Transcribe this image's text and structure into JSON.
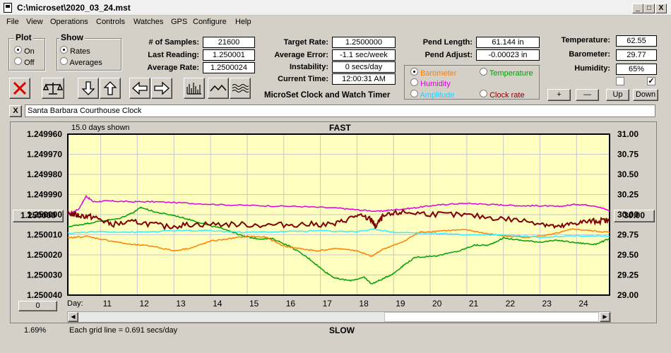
{
  "window": {
    "title": "C:\\microset\\2020_03_24.mst",
    "min": "_",
    "max": "□",
    "close": "X"
  },
  "menu": [
    "File",
    "View",
    "Operations",
    "Controls",
    "Watches",
    "GPS",
    "Configure",
    "Help"
  ],
  "plot_group": {
    "title": "Plot",
    "on": "On",
    "off": "Off",
    "selected": "On"
  },
  "show_group": {
    "title": "Show",
    "rates": "Rates",
    "averages": "Averages",
    "selected": "Rates"
  },
  "stats": {
    "samples_label": "# of Samples:",
    "samples": "21600",
    "last_label": "Last Reading:",
    "last": "1.250001",
    "avg_label": "Average Rate:",
    "avg": "1.2500024"
  },
  "target": {
    "rate_label": "Target Rate:",
    "rate": "1.2500000",
    "error_label": "Average Error:",
    "error": "-1.1 sec/week",
    "instab_label": "Instability:",
    "instab": "0 secs/day",
    "time_label": "Current Time:",
    "time": "12:00:31 AM"
  },
  "pend": {
    "length_label": "Pend Length:",
    "length": "61.144 in",
    "adjust_label": "Pend Adjust:",
    "adjust": "-0.00023 in"
  },
  "env": {
    "temp_label": "Temperature:",
    "temp": "62.55",
    "baro_label": "Barometer:",
    "baro": "29.77",
    "hum_label": "Humidity:",
    "hum": "65%"
  },
  "env_buttons": {
    "plus": "+",
    "minus": "—",
    "up": "Up",
    "down": "Down"
  },
  "sensor_options": [
    {
      "label": "Barometer",
      "color": "#ff8000",
      "selected": true
    },
    {
      "label": "Temperature",
      "color": "#00a000",
      "selected": false
    },
    {
      "label": "Humidity",
      "color": "#e000e0",
      "selected": false
    },
    {
      "label": "Amplitude",
      "color": "#00c0ff",
      "selected": false
    },
    {
      "label": "Clock rate",
      "color": "#800000",
      "selected": false
    }
  ],
  "app_caption": "MicroSet Clock and Watch Timer",
  "clock_name": "Santa Barbara Courthouse Clock",
  "close_x": "X",
  "toolbar_icons": [
    "stop-icon",
    "balance-icon",
    "arrow-down-icon",
    "arrow-up-icon",
    "arrow-left-icon",
    "arrow-right-icon",
    "histogram-icon",
    "wave-icon",
    "ripple-icon"
  ],
  "graph": {
    "days_shown": "15.0 days shown",
    "fast": "FAST",
    "slow": "SLOW",
    "grid_note": "Each grid line = 0.691 secs/day",
    "day_label": "Day:",
    "percent": "1.69%",
    "left_button": "1.250000",
    "right_button": "30.00",
    "bottom_button": "0"
  },
  "chart_data": {
    "type": "line",
    "left_axis": {
      "ticks": [
        "1.249960",
        "1.249970",
        "1.249980",
        "1.249990",
        "1.250000",
        "1.250010",
        "1.250020",
        "1.250030",
        "1.250040"
      ],
      "ylim": [
        1.24996,
        1.25004
      ],
      "inverted": true
    },
    "right_axis": {
      "ticks": [
        "31.00",
        "30.75",
        "30.50",
        "30.25",
        "30.00",
        "29.75",
        "29.50",
        "29.25",
        "29.00"
      ],
      "ylim": [
        29.0,
        31.0
      ]
    },
    "x": {
      "label": "Day",
      "ticks": [
        "11",
        "12",
        "13",
        "14",
        "15",
        "16",
        "17",
        "18",
        "19",
        "20",
        "21",
        "22",
        "23",
        "24"
      ],
      "xlim": [
        10.1,
        24.9
      ]
    },
    "series": [
      {
        "name": "Humidity",
        "color": "#e000e0",
        "x": [
          10.1,
          10.4,
          10.6,
          10.8,
          11.2,
          11.8,
          12.5,
          13.5,
          14.5,
          15.5,
          16.5,
          17.5,
          18,
          18.6,
          19,
          19.5,
          20,
          20.5,
          21,
          21.5,
          22,
          22.5,
          23,
          23.5,
          24,
          24.5,
          24.9
        ],
        "y": [
          30.0,
          30.07,
          30.23,
          30.16,
          30.17,
          30.16,
          30.16,
          30.14,
          30.12,
          30.11,
          30.1,
          30.08,
          30.06,
          30.04,
          30.06,
          30.08,
          30.11,
          30.13,
          30.14,
          30.13,
          30.12,
          30.11,
          30.11,
          30.1,
          30.13,
          30.11,
          30.05
        ]
      },
      {
        "name": "Temperature",
        "color": "#00a000",
        "x": [
          10.1,
          10.5,
          11,
          11.5,
          11.9,
          12.1,
          12.5,
          13,
          13.5,
          14,
          14.4,
          14.9,
          15.3,
          15.7,
          16.2,
          16.7,
          17.1,
          17.4,
          17.8,
          18.2,
          18.4,
          18.7,
          19,
          19.3,
          19.6,
          20.2,
          20.8,
          21.2,
          21.6,
          22,
          22.5,
          23,
          23.5,
          24,
          24.5,
          24.9
        ],
        "y": [
          29.85,
          29.88,
          29.92,
          29.95,
          30.03,
          30.09,
          30.03,
          29.99,
          29.93,
          29.86,
          29.82,
          29.73,
          29.7,
          29.7,
          29.6,
          29.45,
          29.3,
          29.21,
          29.18,
          29.22,
          29.14,
          29.2,
          29.27,
          29.38,
          29.47,
          29.49,
          29.55,
          29.62,
          29.62,
          29.71,
          29.68,
          29.66,
          29.68,
          29.65,
          29.63,
          29.7
        ]
      },
      {
        "name": "Barometer",
        "color": "#ff8000",
        "x": [
          10.1,
          10.6,
          11.2,
          11.8,
          12.4,
          13,
          13.5,
          14,
          14.5,
          15,
          15.5,
          16,
          16.4,
          16.9,
          17.5,
          18,
          18.4,
          18.7,
          19.2,
          19.7,
          20.3,
          21,
          21.6,
          22.1,
          22.7,
          23.3,
          23.9,
          24.4,
          24.9
        ],
        "y": [
          29.71,
          29.73,
          29.68,
          29.63,
          29.61,
          29.55,
          29.59,
          29.67,
          29.7,
          29.73,
          29.72,
          29.61,
          29.58,
          29.55,
          29.58,
          29.55,
          29.48,
          29.57,
          29.65,
          29.78,
          29.8,
          29.81,
          29.76,
          29.73,
          29.72,
          29.75,
          29.82,
          29.8,
          29.78
        ]
      },
      {
        "name": "Amplitude",
        "color": "#33eeff",
        "x": [
          10.1,
          11,
          12,
          13,
          14,
          15,
          16,
          17,
          18,
          18.5,
          19,
          20,
          21,
          22,
          23,
          24,
          24.9
        ],
        "y": [
          29.77,
          29.79,
          29.78,
          29.8,
          29.8,
          29.78,
          29.79,
          29.8,
          29.79,
          29.82,
          29.78,
          29.77,
          29.75,
          29.75,
          29.72,
          29.74,
          29.73
        ]
      },
      {
        "name": "Clock rate",
        "color": "#800000",
        "x": [
          10.1,
          10.4,
          10.8,
          11.3,
          12,
          12.8,
          13.5,
          14.5,
          15.5,
          16.5,
          17.4,
          18,
          18.4,
          18.5,
          18.7,
          19.2,
          20,
          21,
          22,
          23,
          23.5,
          24,
          24.5,
          24.9
        ],
        "y": [
          30.02,
          29.99,
          29.97,
          29.88,
          29.91,
          29.85,
          29.88,
          29.88,
          29.87,
          29.88,
          29.88,
          29.99,
          29.94,
          29.85,
          29.97,
          30.03,
          30.01,
          29.99,
          29.95,
          29.9,
          29.84,
          29.9,
          29.92,
          29.93
        ]
      }
    ]
  }
}
